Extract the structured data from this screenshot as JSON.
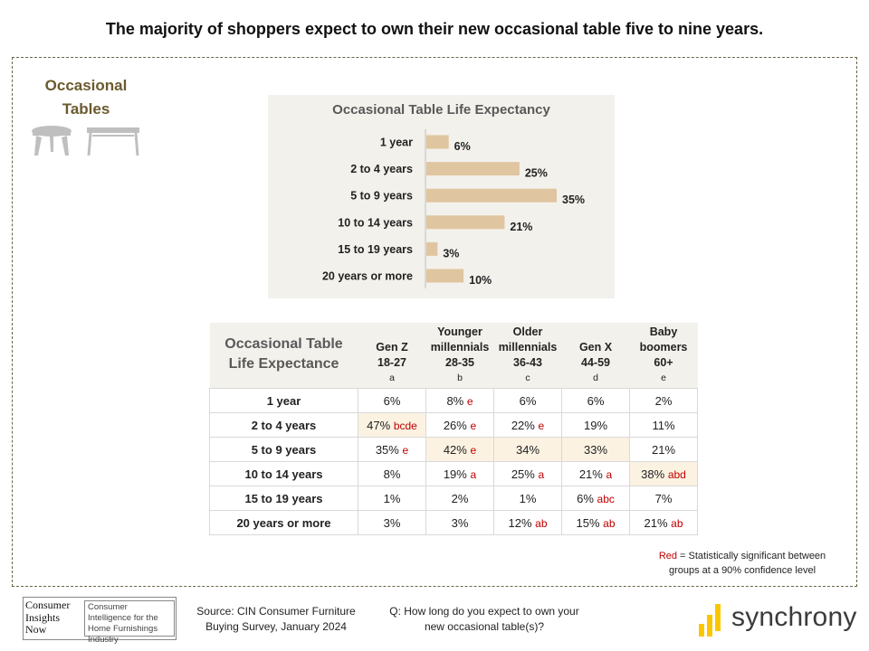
{
  "headline": "The majority of shoppers expect to own their new occasional table five to nine years.",
  "category": {
    "line1": "Occasional",
    "line2": "Tables",
    "icons": [
      "round-side-table-icon",
      "rectangular-table-icon"
    ]
  },
  "chart_data": {
    "type": "bar",
    "orientation": "horizontal",
    "title": "Occasional Table Life Expectancy",
    "categories": [
      "1 year",
      "2 to 4 years",
      "5 to 9 years",
      "10 to 14 years",
      "15 to 19 years",
      "20 years or more"
    ],
    "values": [
      6,
      25,
      35,
      21,
      3,
      10
    ],
    "value_labels": [
      "6%",
      "25%",
      "35%",
      "21%",
      "3%",
      "10%"
    ],
    "xlim": [
      0,
      35
    ],
    "bar_color": "#dfc6a0",
    "background": "#f3f1ec",
    "grid": false
  },
  "table": {
    "corner_line1": "Occasional Table",
    "corner_line2": "Life Expectance",
    "columns": [
      {
        "line1": "",
        "line2": "Gen Z",
        "range": "18-27",
        "code": "a"
      },
      {
        "line1": "Younger",
        "line2": "millennials",
        "range": "28-35",
        "code": "b"
      },
      {
        "line1": "Older",
        "line2": "millennials",
        "range": "36-43",
        "code": "c"
      },
      {
        "line1": "",
        "line2": "Gen X",
        "range": "44-59",
        "code": "d"
      },
      {
        "line1": "Baby",
        "line2": "boomers",
        "range": "60+",
        "code": "e"
      }
    ],
    "rows": [
      {
        "label": "1 year",
        "cells": [
          {
            "value": "6%",
            "sig": "",
            "hl": false
          },
          {
            "value": "8%",
            "sig": "e",
            "hl": false
          },
          {
            "value": "6%",
            "sig": "",
            "hl": false
          },
          {
            "value": "6%",
            "sig": "",
            "hl": false
          },
          {
            "value": "2%",
            "sig": "",
            "hl": false
          }
        ]
      },
      {
        "label": "2 to 4 years",
        "cells": [
          {
            "value": "47%",
            "sig": "bcde",
            "hl": true
          },
          {
            "value": "26%",
            "sig": "e",
            "hl": false
          },
          {
            "value": "22%",
            "sig": "e",
            "hl": false
          },
          {
            "value": "19%",
            "sig": "",
            "hl": false
          },
          {
            "value": "11%",
            "sig": "",
            "hl": false
          }
        ]
      },
      {
        "label": "5 to 9 years",
        "cells": [
          {
            "value": "35%",
            "sig": "e",
            "hl": false
          },
          {
            "value": "42%",
            "sig": "e",
            "hl": true
          },
          {
            "value": "34%",
            "sig": "",
            "hl": true
          },
          {
            "value": "33%",
            "sig": "",
            "hl": true
          },
          {
            "value": "21%",
            "sig": "",
            "hl": false
          }
        ]
      },
      {
        "label": "10 to 14 years",
        "cells": [
          {
            "value": "8%",
            "sig": "",
            "hl": false
          },
          {
            "value": "19%",
            "sig": "a",
            "hl": false
          },
          {
            "value": "25%",
            "sig": "a",
            "hl": false
          },
          {
            "value": "21%",
            "sig": "a",
            "hl": false
          },
          {
            "value": "38%",
            "sig": "abd",
            "hl": true
          }
        ]
      },
      {
        "label": "15 to 19 years",
        "cells": [
          {
            "value": "1%",
            "sig": "",
            "hl": false
          },
          {
            "value": "2%",
            "sig": "",
            "hl": false
          },
          {
            "value": "1%",
            "sig": "",
            "hl": false
          },
          {
            "value": "6%",
            "sig": "abc",
            "hl": false
          },
          {
            "value": "7%",
            "sig": "",
            "hl": false
          }
        ]
      },
      {
        "label": "20 years or more",
        "cells": [
          {
            "value": "3%",
            "sig": "",
            "hl": false
          },
          {
            "value": "3%",
            "sig": "",
            "hl": false
          },
          {
            "value": "12%",
            "sig": "ab",
            "hl": false
          },
          {
            "value": "15%",
            "sig": "ab",
            "hl": false
          },
          {
            "value": "21%",
            "sig": "ab",
            "hl": false
          }
        ]
      }
    ]
  },
  "footnote": {
    "red_word": "Red",
    "line1_rest": " = Statistically significant between",
    "line2": "groups at a 90% confidence level"
  },
  "logo": {
    "line1": "Consumer",
    "line2": "Insights",
    "line3": "Now",
    "tagline": "Consumer Intelligence for the Home Furnishings Industry"
  },
  "source": {
    "line1": "Source:  CIN Consumer Furniture",
    "line2": "Buying Survey, January 2024"
  },
  "question": {
    "line1": "Q: How long do you expect to own your",
    "line2": "new occasional table(s)?"
  },
  "brand": {
    "name": "synchrony",
    "accent": "#fbc600"
  }
}
